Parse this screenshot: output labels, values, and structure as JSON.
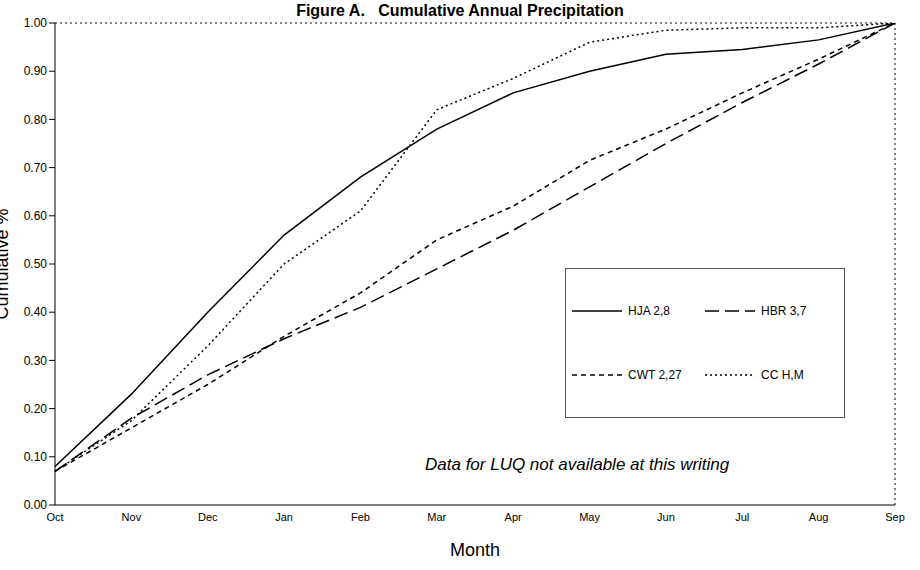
{
  "chart_data": {
    "type": "line",
    "title": "Figure A.   Cumulative Annual Precipitation",
    "x_label": "Month",
    "y_label": "Cumulative %",
    "annotation": "Data for LUQ not available at this writing",
    "categories": [
      "Oct",
      "Nov",
      "Dec",
      "Jan",
      "Feb",
      "Mar",
      "Apr",
      "May",
      "Jun",
      "Jul",
      "Aug",
      "Sep"
    ],
    "series": [
      {
        "name": "HJA 2,8",
        "color": "#000000",
        "line_style": "solid",
        "values": [
          0.08,
          0.23,
          0.4,
          0.56,
          0.68,
          0.78,
          0.855,
          0.9,
          0.935,
          0.945,
          0.965,
          1.0
        ]
      },
      {
        "name": "HBR 3,7",
        "color": "#000000",
        "line_style": "longdash",
        "values": [
          0.07,
          0.18,
          0.27,
          0.345,
          0.41,
          0.49,
          0.57,
          0.66,
          0.75,
          0.835,
          0.915,
          1.0
        ]
      },
      {
        "name": "CWT 2,27",
        "color": "#000000",
        "line_style": "dash",
        "values": [
          0.07,
          0.16,
          0.25,
          0.35,
          0.44,
          0.55,
          0.62,
          0.715,
          0.78,
          0.855,
          0.925,
          1.0
        ]
      },
      {
        "name": "CC H,M",
        "color": "#000000",
        "line_style": "dot",
        "values": [
          0.07,
          0.175,
          0.33,
          0.5,
          0.61,
          0.82,
          0.885,
          0.96,
          0.985,
          0.99,
          0.99,
          1.0
        ]
      }
    ],
    "ylim": [
      0,
      1
    ],
    "yticks": [
      {
        "value": 0,
        "label": "0.00"
      },
      {
        "value": 0.1,
        "label": "0.10"
      },
      {
        "value": 0.2,
        "label": "0.20"
      },
      {
        "value": 0.3,
        "label": "0.30"
      },
      {
        "value": 0.4,
        "label": "0.40"
      },
      {
        "value": 0.5,
        "label": "0.50"
      },
      {
        "value": 0.6,
        "label": "0.60"
      },
      {
        "value": 0.7,
        "label": "0.70"
      },
      {
        "value": 0.8,
        "label": "0.80"
      },
      {
        "value": 0.9,
        "label": "0.90"
      },
      {
        "value": 1,
        "label": "1.00"
      }
    ],
    "grid": false,
    "legend": "right"
  }
}
